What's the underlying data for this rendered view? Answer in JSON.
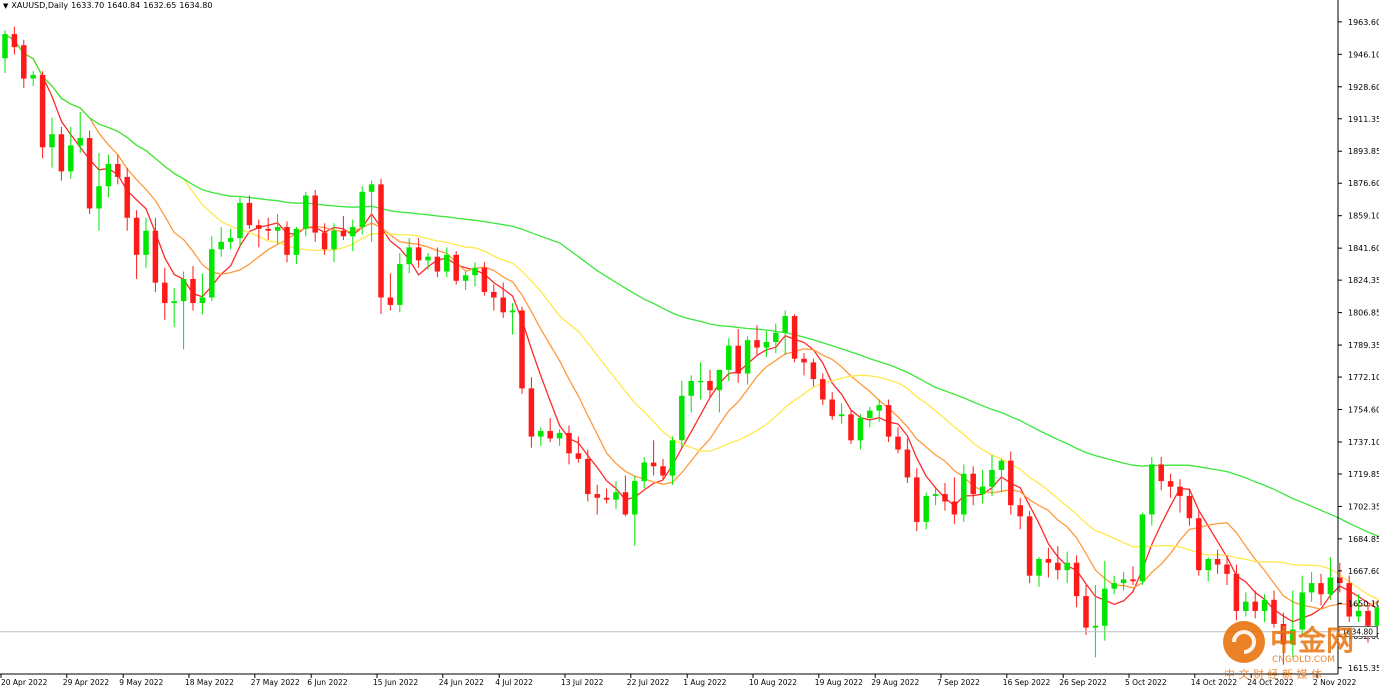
{
  "header": {
    "symbol_line": "XAUUSD,Daily",
    "ohlc": [
      "1633.70",
      "1640.84",
      "1632.65",
      "1634.80"
    ]
  },
  "current_price_label": "1634.80",
  "watermark": {
    "brand": "中金网",
    "domain": "CNGOLD.COM",
    "slogan": "中 文 财 经 新 媒 体"
  },
  "colors": {
    "bull": "#00e600",
    "bear": "#ff1a1a",
    "ma_fast": "#ff2a2a",
    "ma_mid": "#ff9a3c",
    "ma_slow": "#ffe84d",
    "ma_long": "#3de63d",
    "axis": "#000000",
    "price_line": "#c0c0c0"
  },
  "chart_data": {
    "type": "candlestick",
    "title": "XAUUSD,Daily",
    "y_ticks": [
      1963.6,
      1946.1,
      1928.6,
      1911.35,
      1893.85,
      1876.6,
      1859.1,
      1841.6,
      1824.35,
      1806.85,
      1789.35,
      1772.1,
      1754.6,
      1737.1,
      1719.85,
      1702.35,
      1684.85,
      1667.6,
      1650.1,
      1632.6,
      1615.35
    ],
    "y_tick_labels": [
      "1963.60",
      "1946.10",
      "1928.60",
      "1911.35",
      "1893.85",
      "1876.60",
      "1859.10",
      "1841.60",
      "1824.35",
      "1806.85",
      "1789.35",
      "1772.10",
      "1754.60",
      "1737.10",
      "1719.85",
      "1702.35",
      "1684.85",
      "1667.60",
      "1650.10",
      "1632.60",
      "1615.35"
    ],
    "ylim": [
      1612,
      1970
    ],
    "x_tick_labels": [
      {
        "label": "20 Apr 2022",
        "bar": 0
      },
      {
        "label": "29 Apr 2022",
        "bar": 7
      },
      {
        "label": "9 May 2022",
        "bar": 13
      },
      {
        "label": "18 May 2022",
        "bar": 20
      },
      {
        "label": "27 May 2022",
        "bar": 27
      },
      {
        "label": "6 Jun 2022",
        "bar": 33
      },
      {
        "label": "15 Jun 2022",
        "bar": 40
      },
      {
        "label": "24 Jun 2022",
        "bar": 47
      },
      {
        "label": "4 Jul 2022",
        "bar": 53
      },
      {
        "label": "13 Jul 2022",
        "bar": 60
      },
      {
        "label": "22 Jul 2022",
        "bar": 67
      },
      {
        "label": "1 Aug 2022",
        "bar": 73
      },
      {
        "label": "10 Aug 2022",
        "bar": 80
      },
      {
        "label": "19 Aug 2022",
        "bar": 87
      },
      {
        "label": "29 Aug 2022",
        "bar": 93
      },
      {
        "label": "7 Sep 2022",
        "bar": 100
      },
      {
        "label": "16 Sep 2022",
        "bar": 107
      },
      {
        "label": "26 Sep 2022",
        "bar": 113
      },
      {
        "label": "5 Oct 2022",
        "bar": 120
      },
      {
        "label": "14 Oct 2022",
        "bar": 127
      },
      {
        "label": "24 Oct 2022",
        "bar": 133
      },
      {
        "label": "2 Nov 2022",
        "bar": 140
      }
    ],
    "candles": [
      {
        "o": 1944,
        "h": 1959,
        "l": 1936,
        "c": 1957
      },
      {
        "o": 1957,
        "h": 1961,
        "l": 1946,
        "c": 1950
      },
      {
        "o": 1951,
        "h": 1954,
        "l": 1928,
        "c": 1933
      },
      {
        "o": 1933,
        "h": 1937,
        "l": 1929,
        "c": 1935
      },
      {
        "o": 1935,
        "h": 1937,
        "l": 1890,
        "c": 1896
      },
      {
        "o": 1896,
        "h": 1912,
        "l": 1885,
        "c": 1903
      },
      {
        "o": 1903,
        "h": 1907,
        "l": 1878,
        "c": 1883
      },
      {
        "o": 1883,
        "h": 1907,
        "l": 1879,
        "c": 1897
      },
      {
        "o": 1897,
        "h": 1915,
        "l": 1893,
        "c": 1901
      },
      {
        "o": 1901,
        "h": 1905,
        "l": 1860,
        "c": 1863
      },
      {
        "o": 1863,
        "h": 1893,
        "l": 1851,
        "c": 1875
      },
      {
        "o": 1875,
        "h": 1892,
        "l": 1869,
        "c": 1887
      },
      {
        "o": 1887,
        "h": 1892,
        "l": 1876,
        "c": 1880
      },
      {
        "o": 1880,
        "h": 1885,
        "l": 1851,
        "c": 1858
      },
      {
        "o": 1858,
        "h": 1862,
        "l": 1825,
        "c": 1838
      },
      {
        "o": 1838,
        "h": 1858,
        "l": 1831,
        "c": 1851
      },
      {
        "o": 1851,
        "h": 1858,
        "l": 1818,
        "c": 1823
      },
      {
        "o": 1823,
        "h": 1831,
        "l": 1803,
        "c": 1812
      },
      {
        "o": 1812,
        "h": 1820,
        "l": 1799,
        "c": 1813
      },
      {
        "o": 1813,
        "h": 1829,
        "l": 1787,
        "c": 1825
      },
      {
        "o": 1825,
        "h": 1832,
        "l": 1808,
        "c": 1812
      },
      {
        "o": 1812,
        "h": 1828,
        "l": 1806,
        "c": 1815
      },
      {
        "o": 1815,
        "h": 1848,
        "l": 1813,
        "c": 1841
      },
      {
        "o": 1841,
        "h": 1853,
        "l": 1837,
        "c": 1845
      },
      {
        "o": 1845,
        "h": 1852,
        "l": 1841,
        "c": 1847
      },
      {
        "o": 1847,
        "h": 1869,
        "l": 1843,
        "c": 1866
      },
      {
        "o": 1866,
        "h": 1870,
        "l": 1852,
        "c": 1854
      },
      {
        "o": 1854,
        "h": 1857,
        "l": 1842,
        "c": 1852
      },
      {
        "o": 1852,
        "h": 1858,
        "l": 1846,
        "c": 1851
      },
      {
        "o": 1851,
        "h": 1860,
        "l": 1844,
        "c": 1853
      },
      {
        "o": 1853,
        "h": 1856,
        "l": 1834,
        "c": 1838
      },
      {
        "o": 1838,
        "h": 1853,
        "l": 1833,
        "c": 1852
      },
      {
        "o": 1852,
        "h": 1872,
        "l": 1848,
        "c": 1870
      },
      {
        "o": 1870,
        "h": 1873,
        "l": 1845,
        "c": 1850
      },
      {
        "o": 1850,
        "h": 1855,
        "l": 1838,
        "c": 1841
      },
      {
        "o": 1841,
        "h": 1855,
        "l": 1834,
        "c": 1851
      },
      {
        "o": 1851,
        "h": 1859,
        "l": 1846,
        "c": 1848
      },
      {
        "o": 1848,
        "h": 1857,
        "l": 1840,
        "c": 1853
      },
      {
        "o": 1853,
        "h": 1875,
        "l": 1849,
        "c": 1872
      },
      {
        "o": 1872,
        "h": 1878,
        "l": 1845,
        "c": 1876
      },
      {
        "o": 1876,
        "h": 1879,
        "l": 1806,
        "c": 1815
      },
      {
        "o": 1815,
        "h": 1828,
        "l": 1808,
        "c": 1811
      },
      {
        "o": 1811,
        "h": 1839,
        "l": 1807,
        "c": 1833
      },
      {
        "o": 1833,
        "h": 1847,
        "l": 1828,
        "c": 1842
      },
      {
        "o": 1842,
        "h": 1847,
        "l": 1831,
        "c": 1835
      },
      {
        "o": 1835,
        "h": 1839,
        "l": 1830,
        "c": 1837
      },
      {
        "o": 1837,
        "h": 1842,
        "l": 1826,
        "c": 1829
      },
      {
        "o": 1829,
        "h": 1842,
        "l": 1826,
        "c": 1838
      },
      {
        "o": 1838,
        "h": 1840,
        "l": 1822,
        "c": 1824
      },
      {
        "o": 1824,
        "h": 1829,
        "l": 1819,
        "c": 1827
      },
      {
        "o": 1827,
        "h": 1834,
        "l": 1821,
        "c": 1831
      },
      {
        "o": 1831,
        "h": 1834,
        "l": 1816,
        "c": 1818
      },
      {
        "o": 1818,
        "h": 1822,
        "l": 1808,
        "c": 1815
      },
      {
        "o": 1815,
        "h": 1823,
        "l": 1804,
        "c": 1807
      },
      {
        "o": 1807,
        "h": 1812,
        "l": 1795,
        "c": 1808
      },
      {
        "o": 1808,
        "h": 1810,
        "l": 1763,
        "c": 1766
      },
      {
        "o": 1766,
        "h": 1772,
        "l": 1734,
        "c": 1740
      },
      {
        "o": 1740,
        "h": 1745,
        "l": 1735,
        "c": 1743
      },
      {
        "o": 1743,
        "h": 1750,
        "l": 1737,
        "c": 1739
      },
      {
        "o": 1739,
        "h": 1744,
        "l": 1735,
        "c": 1742
      },
      {
        "o": 1742,
        "h": 1746,
        "l": 1725,
        "c": 1731
      },
      {
        "o": 1731,
        "h": 1740,
        "l": 1726,
        "c": 1728
      },
      {
        "o": 1728,
        "h": 1733,
        "l": 1705,
        "c": 1709
      },
      {
        "o": 1709,
        "h": 1714,
        "l": 1698,
        "c": 1707
      },
      {
        "o": 1707,
        "h": 1712,
        "l": 1704,
        "c": 1706
      },
      {
        "o": 1706,
        "h": 1716,
        "l": 1701,
        "c": 1710
      },
      {
        "o": 1710,
        "h": 1719,
        "l": 1697,
        "c": 1698
      },
      {
        "o": 1698,
        "h": 1719,
        "l": 1681,
        "c": 1716
      },
      {
        "o": 1716,
        "h": 1729,
        "l": 1712,
        "c": 1726
      },
      {
        "o": 1726,
        "h": 1738,
        "l": 1719,
        "c": 1724
      },
      {
        "o": 1724,
        "h": 1728,
        "l": 1717,
        "c": 1719
      },
      {
        "o": 1719,
        "h": 1740,
        "l": 1714,
        "c": 1738
      },
      {
        "o": 1738,
        "h": 1770,
        "l": 1734,
        "c": 1762
      },
      {
        "o": 1762,
        "h": 1773,
        "l": 1753,
        "c": 1770
      },
      {
        "o": 1770,
        "h": 1780,
        "l": 1760,
        "c": 1770
      },
      {
        "o": 1770,
        "h": 1776,
        "l": 1761,
        "c": 1765
      },
      {
        "o": 1765,
        "h": 1773,
        "l": 1753,
        "c": 1776
      },
      {
        "o": 1776,
        "h": 1793,
        "l": 1770,
        "c": 1789
      },
      {
        "o": 1789,
        "h": 1798,
        "l": 1769,
        "c": 1774
      },
      {
        "o": 1774,
        "h": 1794,
        "l": 1768,
        "c": 1792
      },
      {
        "o": 1792,
        "h": 1800,
        "l": 1784,
        "c": 1788
      },
      {
        "o": 1788,
        "h": 1797,
        "l": 1783,
        "c": 1791
      },
      {
        "o": 1791,
        "h": 1801,
        "l": 1785,
        "c": 1796
      },
      {
        "o": 1796,
        "h": 1808,
        "l": 1784,
        "c": 1805
      },
      {
        "o": 1805,
        "h": 1806,
        "l": 1780,
        "c": 1782
      },
      {
        "o": 1782,
        "h": 1785,
        "l": 1773,
        "c": 1780
      },
      {
        "o": 1780,
        "h": 1782,
        "l": 1767,
        "c": 1771
      },
      {
        "o": 1771,
        "h": 1774,
        "l": 1757,
        "c": 1760
      },
      {
        "o": 1760,
        "h": 1764,
        "l": 1749,
        "c": 1751
      },
      {
        "o": 1751,
        "h": 1758,
        "l": 1747,
        "c": 1752
      },
      {
        "o": 1752,
        "h": 1754,
        "l": 1736,
        "c": 1738
      },
      {
        "o": 1738,
        "h": 1752,
        "l": 1733,
        "c": 1750
      },
      {
        "o": 1750,
        "h": 1756,
        "l": 1745,
        "c": 1754
      },
      {
        "o": 1754,
        "h": 1760,
        "l": 1748,
        "c": 1757
      },
      {
        "o": 1757,
        "h": 1760,
        "l": 1737,
        "c": 1740
      },
      {
        "o": 1740,
        "h": 1745,
        "l": 1731,
        "c": 1733
      },
      {
        "o": 1733,
        "h": 1739,
        "l": 1715,
        "c": 1718
      },
      {
        "o": 1718,
        "h": 1723,
        "l": 1689,
        "c": 1694
      },
      {
        "o": 1694,
        "h": 1710,
        "l": 1690,
        "c": 1708
      },
      {
        "o": 1708,
        "h": 1712,
        "l": 1703,
        "c": 1709
      },
      {
        "o": 1709,
        "h": 1715,
        "l": 1700,
        "c": 1705
      },
      {
        "o": 1705,
        "h": 1718,
        "l": 1693,
        "c": 1698
      },
      {
        "o": 1698,
        "h": 1725,
        "l": 1694,
        "c": 1720
      },
      {
        "o": 1720,
        "h": 1724,
        "l": 1703,
        "c": 1709
      },
      {
        "o": 1709,
        "h": 1722,
        "l": 1704,
        "c": 1713
      },
      {
        "o": 1713,
        "h": 1730,
        "l": 1708,
        "c": 1722
      },
      {
        "o": 1722,
        "h": 1728,
        "l": 1710,
        "c": 1727
      },
      {
        "o": 1727,
        "h": 1732,
        "l": 1698,
        "c": 1703
      },
      {
        "o": 1703,
        "h": 1707,
        "l": 1690,
        "c": 1697
      },
      {
        "o": 1697,
        "h": 1700,
        "l": 1661,
        "c": 1665
      },
      {
        "o": 1665,
        "h": 1675,
        "l": 1659,
        "c": 1674
      },
      {
        "o": 1674,
        "h": 1680,
        "l": 1664,
        "c": 1672
      },
      {
        "o": 1672,
        "h": 1681,
        "l": 1663,
        "c": 1668
      },
      {
        "o": 1668,
        "h": 1678,
        "l": 1661,
        "c": 1672
      },
      {
        "o": 1672,
        "h": 1676,
        "l": 1648,
        "c": 1654
      },
      {
        "o": 1654,
        "h": 1660,
        "l": 1633,
        "c": 1637
      },
      {
        "o": 1637,
        "h": 1660,
        "l": 1621,
        "c": 1638
      },
      {
        "o": 1638,
        "h": 1673,
        "l": 1630,
        "c": 1658
      },
      {
        "o": 1658,
        "h": 1665,
        "l": 1655,
        "c": 1661
      },
      {
        "o": 1661,
        "h": 1667,
        "l": 1657,
        "c": 1663
      },
      {
        "o": 1663,
        "h": 1670,
        "l": 1660,
        "c": 1662
      },
      {
        "o": 1662,
        "h": 1699,
        "l": 1660,
        "c": 1698
      },
      {
        "o": 1698,
        "h": 1729,
        "l": 1692,
        "c": 1725
      },
      {
        "o": 1725,
        "h": 1729,
        "l": 1711,
        "c": 1716
      },
      {
        "o": 1716,
        "h": 1720,
        "l": 1707,
        "c": 1713
      },
      {
        "o": 1713,
        "h": 1717,
        "l": 1699,
        "c": 1708
      },
      {
        "o": 1708,
        "h": 1712,
        "l": 1692,
        "c": 1696
      },
      {
        "o": 1696,
        "h": 1700,
        "l": 1665,
        "c": 1668
      },
      {
        "o": 1668,
        "h": 1675,
        "l": 1662,
        "c": 1674
      },
      {
        "o": 1674,
        "h": 1679,
        "l": 1666,
        "c": 1671
      },
      {
        "o": 1671,
        "h": 1676,
        "l": 1660,
        "c": 1666
      },
      {
        "o": 1666,
        "h": 1671,
        "l": 1641,
        "c": 1646
      },
      {
        "o": 1646,
        "h": 1656,
        "l": 1643,
        "c": 1651
      },
      {
        "o": 1651,
        "h": 1657,
        "l": 1642,
        "c": 1646
      },
      {
        "o": 1646,
        "h": 1655,
        "l": 1640,
        "c": 1652
      },
      {
        "o": 1652,
        "h": 1657,
        "l": 1637,
        "c": 1639
      },
      {
        "o": 1639,
        "h": 1645,
        "l": 1617,
        "c": 1628
      },
      {
        "o": 1628,
        "h": 1657,
        "l": 1621,
        "c": 1636
      },
      {
        "o": 1636,
        "h": 1665,
        "l": 1633,
        "c": 1656
      },
      {
        "o": 1656,
        "h": 1667,
        "l": 1651,
        "c": 1661
      },
      {
        "o": 1661,
        "h": 1666,
        "l": 1649,
        "c": 1655
      },
      {
        "o": 1655,
        "h": 1675,
        "l": 1652,
        "c": 1664
      },
      {
        "o": 1664,
        "h": 1672,
        "l": 1656,
        "c": 1661
      },
      {
        "o": 1661,
        "h": 1665,
        "l": 1640,
        "c": 1643
      },
      {
        "o": 1643,
        "h": 1655,
        "l": 1640,
        "c": 1646
      },
      {
        "o": 1646,
        "h": 1649,
        "l": 1629,
        "c": 1638
      },
      {
        "o": 1638,
        "h": 1650,
        "l": 1632,
        "c": 1648
      },
      {
        "o": 1648,
        "h": 1670,
        "l": 1632,
        "c": 1638
      },
      {
        "o": 1633.7,
        "h": 1640.84,
        "l": 1632.65,
        "c": 1634.8
      }
    ],
    "moving_averages": [
      {
        "period": 5,
        "color": "#ff2a2a"
      },
      {
        "period": 10,
        "color": "#ff9a3c"
      },
      {
        "period": 20,
        "color": "#ffe84d"
      },
      {
        "period": 60,
        "color": "#3de63d"
      }
    ],
    "current_price": 1634.8
  }
}
